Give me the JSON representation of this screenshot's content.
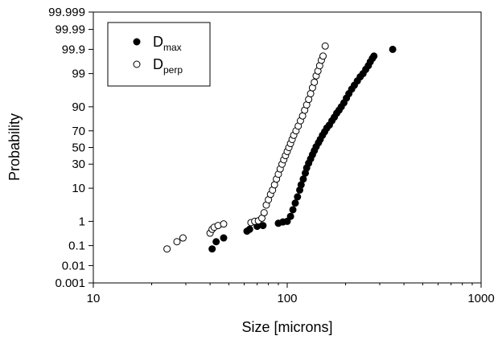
{
  "chart_data": {
    "type": "scatter",
    "xlabel": "Size [microns]",
    "ylabel": "Probability",
    "x_scale": "log",
    "y_scale": "probability",
    "xlim": [
      10,
      1000
    ],
    "ylim": [
      0.001,
      99.999
    ],
    "x_ticks": [
      {
        "value": 10,
        "label": "10"
      },
      {
        "value": 100,
        "label": "100"
      },
      {
        "value": 1000,
        "label": "1000"
      }
    ],
    "y_ticks": [
      {
        "value": 0.001,
        "label": "0.001"
      },
      {
        "value": 0.01,
        "label": "0.01"
      },
      {
        "value": 0.1,
        "label": "0.1"
      },
      {
        "value": 1,
        "label": "1"
      },
      {
        "value": 10,
        "label": "10"
      },
      {
        "value": 30,
        "label": "30"
      },
      {
        "value": 50,
        "label": "50"
      },
      {
        "value": 70,
        "label": "70"
      },
      {
        "value": 90,
        "label": "90"
      },
      {
        "value": 99,
        "label": "99"
      },
      {
        "value": 99.9,
        "label": "99.9"
      },
      {
        "value": 99.99,
        "label": "99.99"
      },
      {
        "value": 99.999,
        "label": "99.999"
      }
    ],
    "grid": false,
    "legend": {
      "position": "top-left",
      "entries": [
        {
          "main": "D",
          "sub": "max",
          "marker": "filled"
        },
        {
          "main": "D",
          "sub": "perp",
          "marker": "open"
        }
      ]
    },
    "series": [
      {
        "name": "Dmax",
        "marker": "filled",
        "color": "#000000",
        "points": [
          [
            41,
            0.07
          ],
          [
            43,
            0.15
          ],
          [
            47,
            0.22
          ],
          [
            62,
            0.42
          ],
          [
            64,
            0.5
          ],
          [
            70,
            0.65
          ],
          [
            75,
            0.7
          ],
          [
            90,
            0.85
          ],
          [
            95,
            0.95
          ],
          [
            100,
            1.0
          ],
          [
            104,
            1.5
          ],
          [
            107,
            2.5
          ],
          [
            110,
            4
          ],
          [
            113,
            6
          ],
          [
            116,
            9
          ],
          [
            118,
            12
          ],
          [
            121,
            16
          ],
          [
            124,
            21
          ],
          [
            126,
            26
          ],
          [
            129,
            31
          ],
          [
            132,
            36
          ],
          [
            135,
            41
          ],
          [
            138,
            46
          ],
          [
            141,
            51
          ],
          [
            145,
            56
          ],
          [
            148,
            60
          ],
          [
            152,
            65
          ],
          [
            156,
            69
          ],
          [
            160,
            73
          ],
          [
            165,
            76
          ],
          [
            170,
            80
          ],
          [
            175,
            83
          ],
          [
            180,
            86
          ],
          [
            185,
            88
          ],
          [
            190,
            90
          ],
          [
            196,
            92
          ],
          [
            202,
            94
          ],
          [
            208,
            95.5
          ],
          [
            215,
            96.7
          ],
          [
            222,
            97.5
          ],
          [
            230,
            98.2
          ],
          [
            238,
            98.7
          ],
          [
            246,
            99.0
          ],
          [
            254,
            99.3
          ],
          [
            262,
            99.5
          ],
          [
            268,
            99.65
          ],
          [
            275,
            99.75
          ],
          [
            280,
            99.8
          ],
          [
            350,
            99.9
          ]
        ]
      },
      {
        "name": "Dperp",
        "marker": "open",
        "color": "#000000",
        "points": [
          [
            24,
            0.07
          ],
          [
            27,
            0.15
          ],
          [
            29,
            0.22
          ],
          [
            40,
            0.35
          ],
          [
            41,
            0.5
          ],
          [
            42,
            0.6
          ],
          [
            44,
            0.7
          ],
          [
            47,
            0.8
          ],
          [
            65,
            0.9
          ],
          [
            68,
            1.0
          ],
          [
            71,
            1.05
          ],
          [
            74,
            1.3
          ],
          [
            76,
            2.0
          ],
          [
            78,
            3.5
          ],
          [
            80,
            5
          ],
          [
            82,
            7
          ],
          [
            84,
            9
          ],
          [
            86,
            12
          ],
          [
            88,
            16
          ],
          [
            90,
            20
          ],
          [
            92,
            25
          ],
          [
            94,
            30
          ],
          [
            96,
            35
          ],
          [
            98,
            40
          ],
          [
            100,
            45
          ],
          [
            102,
            50
          ],
          [
            104,
            55
          ],
          [
            106,
            60
          ],
          [
            108,
            65
          ],
          [
            111,
            70
          ],
          [
            114,
            75
          ],
          [
            117,
            80
          ],
          [
            120,
            84
          ],
          [
            123,
            88
          ],
          [
            126,
            91
          ],
          [
            129,
            93.5
          ],
          [
            132,
            95.5
          ],
          [
            135,
            97
          ],
          [
            138,
            98
          ],
          [
            141,
            98.8
          ],
          [
            144,
            99.2
          ],
          [
            147,
            99.5
          ],
          [
            150,
            99.7
          ],
          [
            153,
            99.8
          ],
          [
            157,
            99.93
          ]
        ]
      }
    ]
  }
}
